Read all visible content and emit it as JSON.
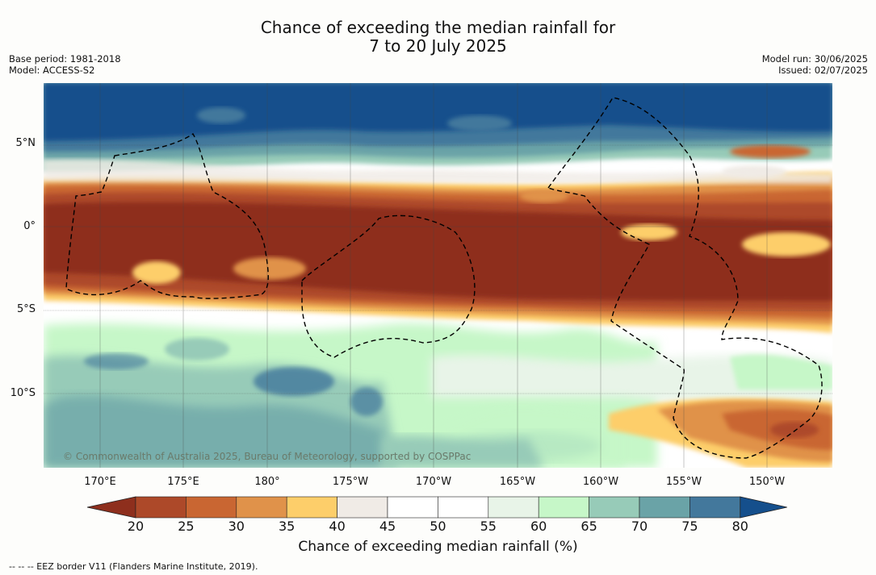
{
  "title": {
    "line1": "Chance of exceeding the median rainfall for",
    "line2": "7 to 20 July 2025"
  },
  "meta_left": {
    "base_period": "Base period: 1981-2018",
    "model": "Model: ACCESS-S2"
  },
  "meta_right": {
    "model_run": "Model run: 30/06/2025",
    "issued": "Issued: 02/07/2025"
  },
  "map": {
    "lat_labels": [
      "5°N",
      "0°",
      "5°S",
      "10°S"
    ],
    "lon_labels": [
      "170°E",
      "175°E",
      "180°",
      "175°W",
      "170°W",
      "165°W",
      "160°W",
      "155°W",
      "150°W"
    ],
    "copyright": "© Commonwealth of Australia 2025, Bureau of Meteorology, supported by COSPPac",
    "bands": [
      {
        "lat_from": 8.5,
        "lat_to": 5.0,
        "level": "80+"
      },
      {
        "lat_from": 5.0,
        "lat_to": 3.5,
        "level": "65-75"
      },
      {
        "lat_from": 3.5,
        "lat_to": 2.5,
        "level": "45-60"
      },
      {
        "lat_from": 2.5,
        "lat_to": 1.5,
        "level": "25-40"
      },
      {
        "lat_from": 1.5,
        "lat_to": -5.0,
        "level": "<20"
      },
      {
        "lat_from": -5.0,
        "lat_to": -7.0,
        "level": "45-60"
      },
      {
        "lat_from": -7.0,
        "lat_to": -14.5,
        "level": "55-75"
      }
    ]
  },
  "colorbar": {
    "label": "Chance of exceeding median rainfall (%)",
    "ticks": [
      "20",
      "25",
      "30",
      "35",
      "40",
      "45",
      "50",
      "55",
      "60",
      "65",
      "70",
      "75",
      "80"
    ],
    "colors": [
      "#8e2f1d",
      "#ad4929",
      "#c96632",
      "#e0924a",
      "#fdce6a",
      "#f0ebe6",
      "#ffffff",
      "#ffffff",
      "#e8f4e8",
      "#c6f7c8",
      "#97cbb8",
      "#6aa3a7",
      "#43789c",
      "#154f8c"
    ]
  },
  "footnote": "-- -- -- EEZ border V11 (Flanders Marine Institute, 2019)."
}
